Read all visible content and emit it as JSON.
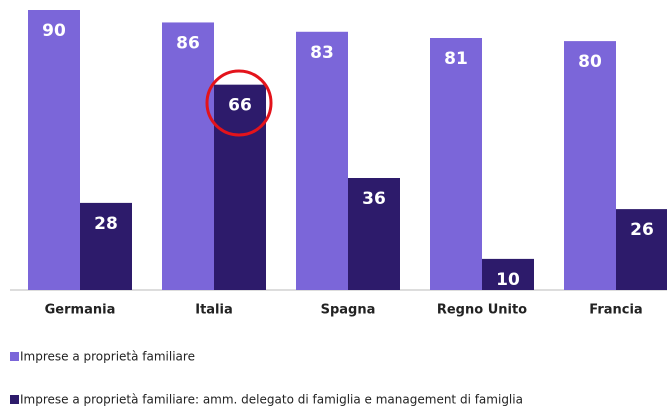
{
  "chart_data": {
    "type": "bar",
    "categories": [
      "Germania",
      "Italia",
      "Spagna",
      "Regno Unito",
      "Francia"
    ],
    "series": [
      {
        "name": "Imprese a proprietà familiare",
        "color": "#7b66d9",
        "values": [
          90,
          86,
          83,
          81,
          80
        ]
      },
      {
        "name": "Imprese a proprietà familiare: amm. delegato di famiglia e management di famiglia",
        "color": "#2d1b6b",
        "values": [
          28,
          66,
          36,
          10,
          26
        ]
      }
    ]
  }
}
